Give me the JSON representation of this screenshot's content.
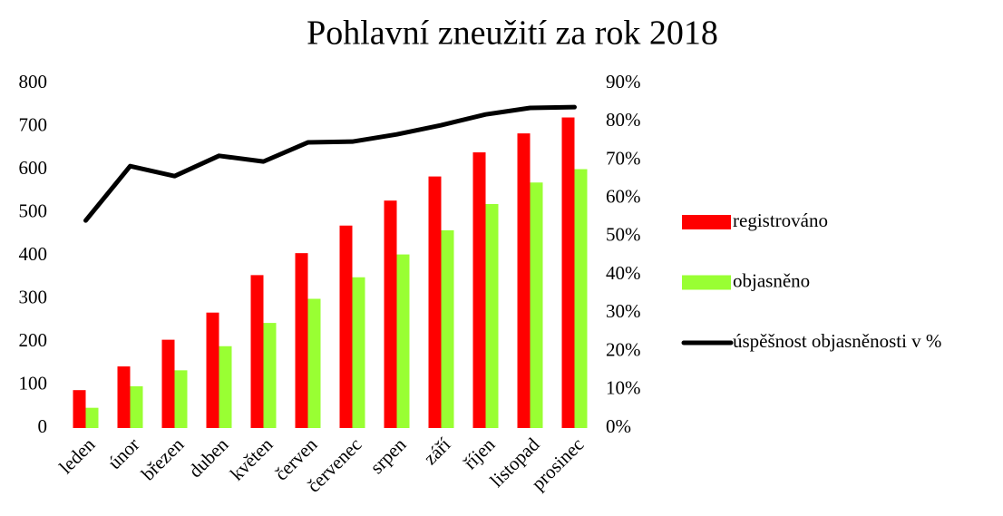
{
  "chart_data": {
    "type": "bar",
    "title": "Pohlavní zneužití za rok 2018",
    "categories": [
      "leden",
      "únor",
      "březen",
      "duben",
      "květen",
      "červen",
      "červenec",
      "srpen",
      "září",
      "říjen",
      "listopad",
      "prosinec"
    ],
    "series": [
      {
        "name": "registrováno",
        "color": "#ff0000",
        "values": [
          88,
          143,
          205,
          268,
          355,
          406,
          470,
          528,
          584,
          640,
          684,
          721
        ]
      },
      {
        "name": "objasněno",
        "color": "#99ff33",
        "values": [
          47,
          97,
          134,
          190,
          244,
          300,
          350,
          403,
          459,
          520,
          570,
          601
        ]
      },
      {
        "name": "úspěšnost objasněnosti v %",
        "color": "#000000",
        "type": "line",
        "axis": "y2",
        "values": [
          54.2,
          68.4,
          65.8,
          71.1,
          69.6,
          74.6,
          74.8,
          76.7,
          79.1,
          81.9,
          83.6,
          83.8
        ]
      }
    ],
    "ylim": [
      0,
      800
    ],
    "yticks": [
      0,
      100,
      200,
      300,
      400,
      500,
      600,
      700,
      800
    ],
    "y2lim": [
      0,
      90
    ],
    "y2ticks": [
      {
        "value": 0,
        "label": "0%"
      },
      {
        "value": 10,
        "label": "10%"
      },
      {
        "value": 20,
        "label": "20%"
      },
      {
        "value": 30,
        "label": "30%"
      },
      {
        "value": 40,
        "label": "40%"
      },
      {
        "value": 50,
        "label": "50%"
      },
      {
        "value": 60,
        "label": "60%"
      },
      {
        "value": 70,
        "label": "70%"
      },
      {
        "value": 80,
        "label": "80%"
      },
      {
        "value": 90,
        "label": "90%"
      }
    ],
    "legend": "right"
  }
}
